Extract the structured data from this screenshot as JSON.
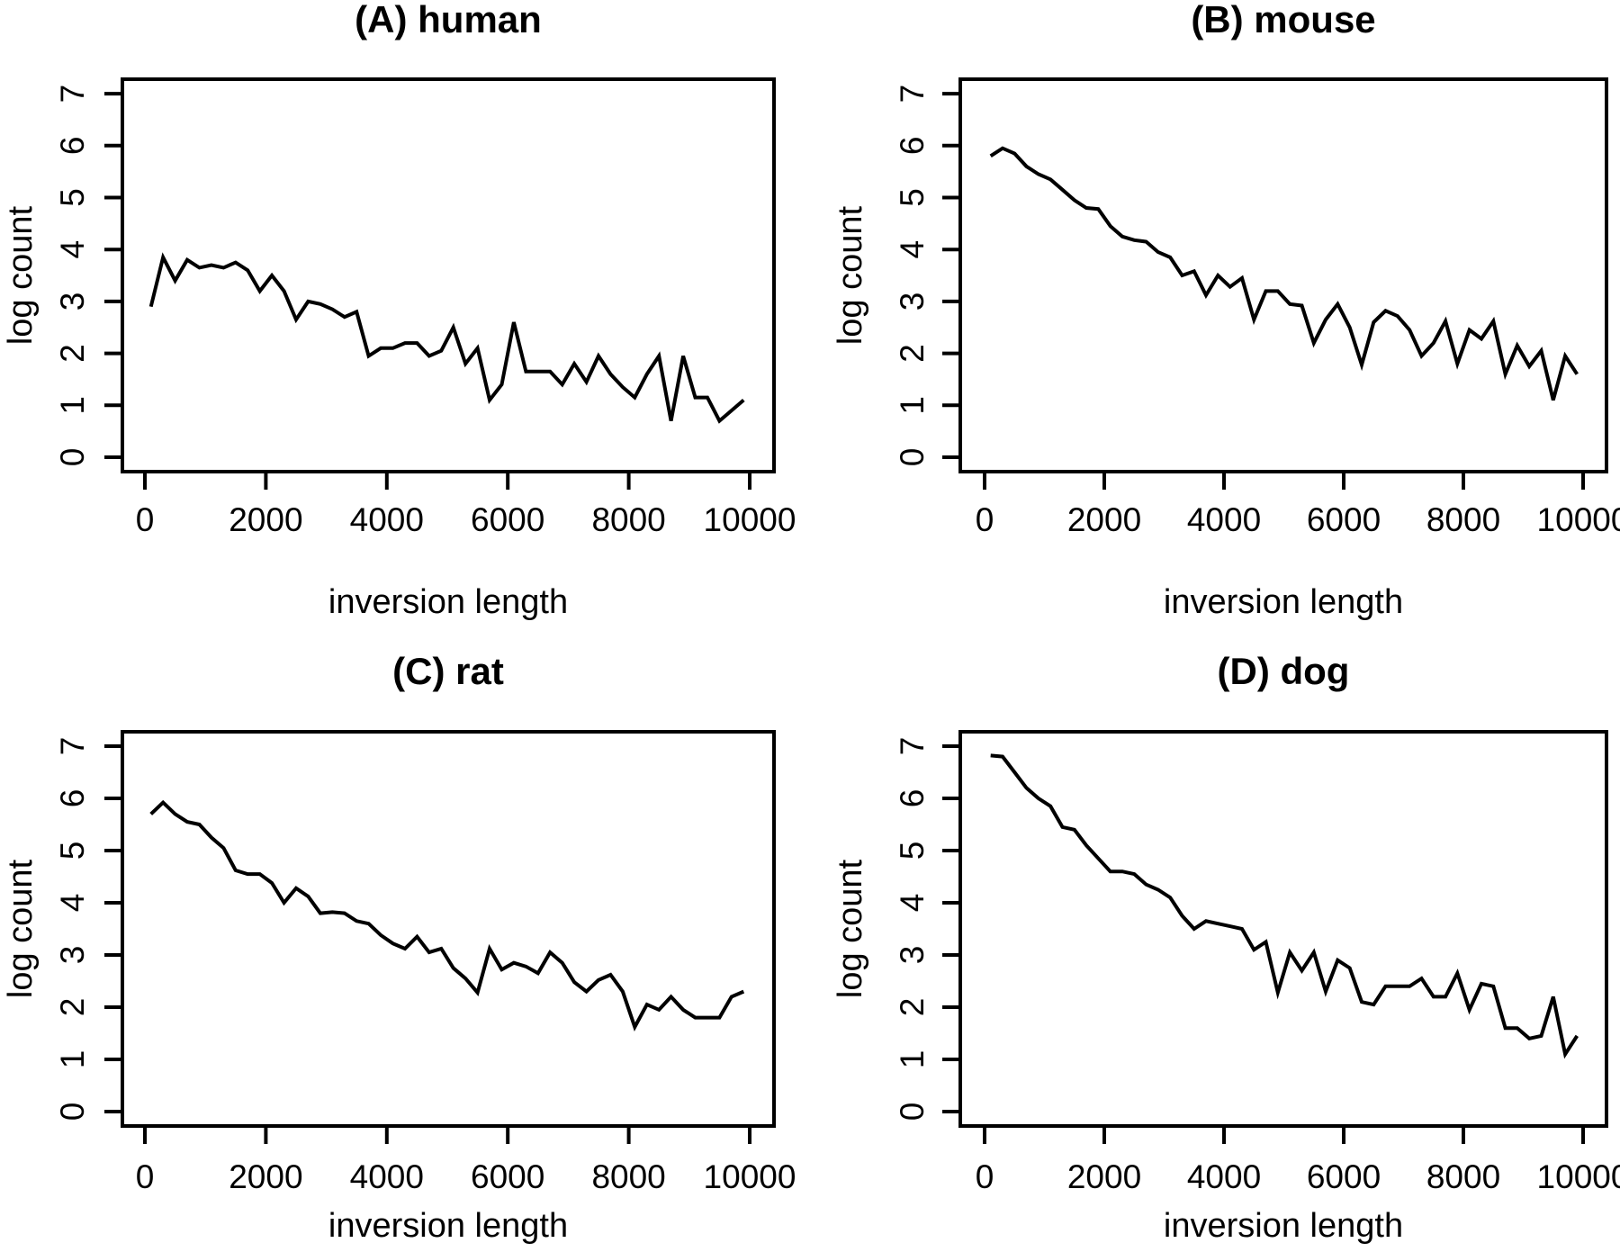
{
  "figure": {
    "background_color": "#ffffff",
    "ink_color": "#000000",
    "description": "2x2 grid of line plots of log count versus inversion length for four species"
  },
  "chart_data": {
    "type": "line",
    "grid": "off",
    "legend": "none",
    "xlabel": "inversion length",
    "ylabel": "log count",
    "xlim": [
      0,
      10000
    ],
    "ylim": [
      0,
      7
    ],
    "x_ticks": [
      0,
      2000,
      4000,
      6000,
      8000,
      10000
    ],
    "y_ticks": [
      0,
      1,
      2,
      3,
      4,
      5,
      6,
      7
    ],
    "x": [
      100,
      300,
      500,
      700,
      900,
      1100,
      1300,
      1500,
      1700,
      1900,
      2100,
      2300,
      2500,
      2700,
      2900,
      3100,
      3300,
      3500,
      3700,
      3900,
      4100,
      4300,
      4500,
      4700,
      4900,
      5100,
      5300,
      5500,
      5700,
      5900,
      6100,
      6300,
      6500,
      6700,
      6900,
      7100,
      7300,
      7500,
      7700,
      7900,
      8100,
      8300,
      8500,
      8700,
      8900,
      9100,
      9300,
      9500,
      9700,
      9900
    ],
    "panels": [
      {
        "id": "A",
        "title": "(A) human",
        "values": [
          2.9,
          3.85,
          3.4,
          3.8,
          3.65,
          3.7,
          3.65,
          3.75,
          3.6,
          3.2,
          3.5,
          3.2,
          2.65,
          3.0,
          2.95,
          2.85,
          2.7,
          2.8,
          1.95,
          2.1,
          2.1,
          2.2,
          2.2,
          1.95,
          2.05,
          2.5,
          1.8,
          2.1,
          1.1,
          1.4,
          2.6,
          1.65,
          1.65,
          1.65,
          1.4,
          1.8,
          1.45,
          1.95,
          1.6,
          1.35,
          1.15,
          1.6,
          1.95,
          0.7,
          1.95,
          1.15,
          1.15,
          0.7,
          0.9,
          1.1
        ]
      },
      {
        "id": "B",
        "title": "(B) mouse",
        "values": [
          5.8,
          5.95,
          5.85,
          5.6,
          5.45,
          5.35,
          5.15,
          4.95,
          4.8,
          4.78,
          4.45,
          4.25,
          4.18,
          4.15,
          3.95,
          3.85,
          3.5,
          3.58,
          3.12,
          3.5,
          3.28,
          3.45,
          2.65,
          3.2,
          3.2,
          2.95,
          2.92,
          2.2,
          2.65,
          2.95,
          2.5,
          1.78,
          2.6,
          2.82,
          2.72,
          2.45,
          1.95,
          2.2,
          2.62,
          1.8,
          2.45,
          2.28,
          2.62,
          1.6,
          2.15,
          1.75,
          2.05,
          1.1,
          1.95,
          1.6
        ]
      },
      {
        "id": "C",
        "title": "(C) rat",
        "values": [
          5.7,
          5.92,
          5.7,
          5.55,
          5.5,
          5.25,
          5.05,
          4.62,
          4.55,
          4.55,
          4.38,
          4.0,
          4.28,
          4.12,
          3.8,
          3.82,
          3.8,
          3.65,
          3.6,
          3.38,
          3.22,
          3.12,
          3.35,
          3.05,
          3.12,
          2.75,
          2.55,
          2.28,
          3.12,
          2.72,
          2.85,
          2.78,
          2.65,
          3.05,
          2.85,
          2.48,
          2.3,
          2.52,
          2.62,
          2.3,
          1.62,
          2.05,
          1.95,
          2.2,
          1.95,
          1.8,
          1.8,
          1.8,
          2.2,
          2.3
        ]
      },
      {
        "id": "D",
        "title": "(D) dog",
        "values": [
          6.82,
          6.8,
          6.5,
          6.2,
          6.0,
          5.85,
          5.45,
          5.4,
          5.1,
          4.85,
          4.6,
          4.6,
          4.55,
          4.35,
          4.25,
          4.1,
          3.75,
          3.5,
          3.65,
          3.6,
          3.55,
          3.5,
          3.1,
          3.25,
          2.28,
          3.05,
          2.7,
          3.05,
          2.3,
          2.9,
          2.75,
          2.1,
          2.05,
          2.4,
          2.4,
          2.4,
          2.55,
          2.2,
          2.2,
          2.65,
          1.95,
          2.45,
          2.4,
          1.6,
          1.6,
          1.4,
          1.45,
          2.2,
          1.1,
          1.45
        ]
      }
    ]
  }
}
